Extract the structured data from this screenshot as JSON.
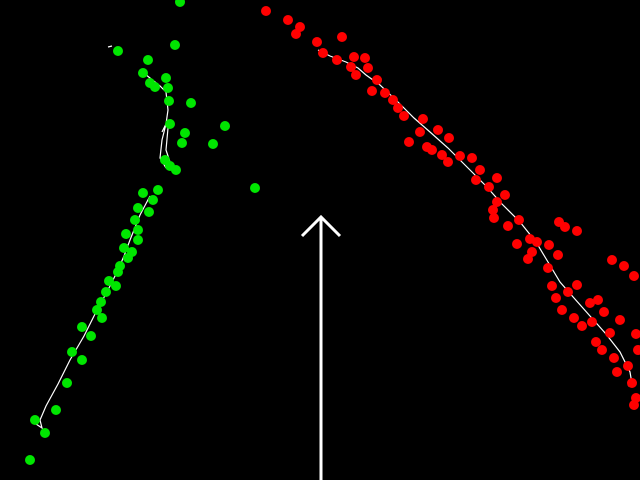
{
  "colors": {
    "background": "#000000",
    "left_points": "#00e600",
    "right_points": "#ff0000",
    "trace": "#ffffff",
    "heading_arrow": "#ffffff"
  },
  "icons": {
    "heading": "up-arrow-icon"
  }
}
